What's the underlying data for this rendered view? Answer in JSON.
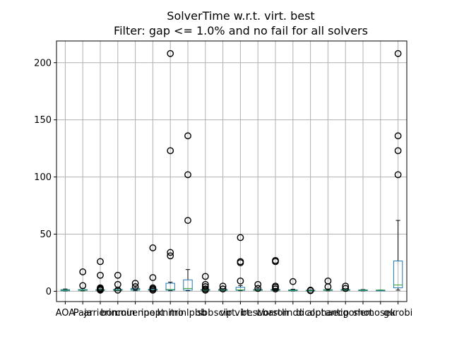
{
  "chart_data": {
    "type": "box",
    "title_line1": "SolverTime w.r.t. virt. best",
    "title_line2": "Filter: gap <= 1.0% and no fail for all solvers",
    "xlabel": "",
    "ylabel": "",
    "ylim": [
      -9,
      219
    ],
    "yticks": [
      0,
      50,
      100,
      150,
      200
    ],
    "grid": true,
    "colors": {
      "box": "#1f77b4",
      "median": "#2ca02c",
      "whisker": "#000000",
      "grid": "#b0b0b0",
      "flier": "#000000"
    },
    "categories": [
      "AOA",
      "Paja",
      "arrierin",
      "bonmin",
      "couenne",
      "ipopt",
      "knitro",
      "minlpbb",
      "sbb",
      "scip",
      "virt. best",
      "virt. worst",
      "baron",
      "lindo",
      "dicopt",
      "alphaecp",
      "antigone",
      "shot",
      "mosek",
      "gurobi"
    ],
    "series": [
      {
        "q1": 0.5,
        "med": 1.0,
        "q3": 1.4,
        "wlo": 0.3,
        "whi": 2.0,
        "fliers": []
      },
      {
        "q1": 0.8,
        "med": 1.0,
        "q3": 1.5,
        "wlo": 0.4,
        "whi": 2.5,
        "fliers": [
          5,
          17
        ]
      },
      {
        "q1": 0.8,
        "med": 1.0,
        "q3": 1.4,
        "wlo": 0.4,
        "whi": 2.0,
        "fliers": [
          1,
          1.5,
          2,
          2.5,
          3,
          14,
          26
        ]
      },
      {
        "q1": 0.8,
        "med": 1.0,
        "q3": 1.6,
        "wlo": 0.5,
        "whi": 2.5,
        "fliers": [
          1,
          6,
          14
        ]
      },
      {
        "q1": 1.0,
        "med": 1.5,
        "q3": 2.5,
        "wlo": 0.5,
        "whi": 3.5,
        "fliers": [
          4,
          7
        ]
      },
      {
        "q1": 0.8,
        "med": 1.0,
        "q3": 1.8,
        "wlo": 0.4,
        "whi": 2.5,
        "fliers": [
          1,
          2,
          3,
          12,
          38
        ]
      },
      {
        "q1": 1.0,
        "med": 1.5,
        "q3": 7.0,
        "wlo": 0.5,
        "whi": 8.0,
        "fliers": [
          31,
          34,
          123,
          208
        ]
      },
      {
        "q1": 1.0,
        "med": 2.5,
        "q3": 10.0,
        "wlo": 0.5,
        "whi": 19.0,
        "fliers": [
          62,
          102,
          136
        ]
      },
      {
        "q1": 0.8,
        "med": 1.0,
        "q3": 1.6,
        "wlo": 0.4,
        "whi": 2.5,
        "fliers": [
          1,
          2,
          4,
          6,
          13
        ]
      },
      {
        "q1": 0.8,
        "med": 1.0,
        "q3": 1.5,
        "wlo": 0.4,
        "whi": 2.2,
        "fliers": [
          2,
          4.5
        ]
      },
      {
        "q1": 0.9,
        "med": 1.2,
        "q3": 3.5,
        "wlo": 0.5,
        "whi": 5.0,
        "fliers": [
          9,
          25,
          26,
          47
        ]
      },
      {
        "q1": 0.8,
        "med": 1.0,
        "q3": 1.5,
        "wlo": 0.4,
        "whi": 2.2,
        "fliers": [
          2.5,
          6
        ]
      },
      {
        "q1": 0.8,
        "med": 1.0,
        "q3": 1.6,
        "wlo": 0.4,
        "whi": 2.5,
        "fliers": [
          2,
          3.5,
          4.5,
          26,
          27
        ]
      },
      {
        "q1": 0.5,
        "med": 0.8,
        "q3": 1.2,
        "wlo": 0.3,
        "whi": 1.8,
        "fliers": [
          8.5
        ]
      },
      {
        "q1": 0.4,
        "med": 0.6,
        "q3": 0.9,
        "wlo": 0.2,
        "whi": 1.2,
        "fliers": [
          0.5,
          1
        ]
      },
      {
        "q1": 0.8,
        "med": 1.0,
        "q3": 1.4,
        "wlo": 0.4,
        "whi": 2.0,
        "fliers": [
          4,
          9
        ]
      },
      {
        "q1": 0.8,
        "med": 1.0,
        "q3": 1.5,
        "wlo": 0.4,
        "whi": 2.0,
        "fliers": [
          2.5,
          4.5
        ]
      },
      {
        "q1": 0.6,
        "med": 0.9,
        "q3": 1.2,
        "wlo": 0.4,
        "whi": 1.5,
        "fliers": []
      },
      {
        "q1": 1.0,
        "med": 1.0,
        "q3": 1.0,
        "wlo": 1.0,
        "whi": 1.0,
        "fliers": []
      },
      {
        "q1": 3.0,
        "med": 5.5,
        "q3": 26.5,
        "wlo": 1.0,
        "whi": 62.0,
        "fliers": [
          102,
          123,
          136,
          208
        ]
      }
    ]
  }
}
